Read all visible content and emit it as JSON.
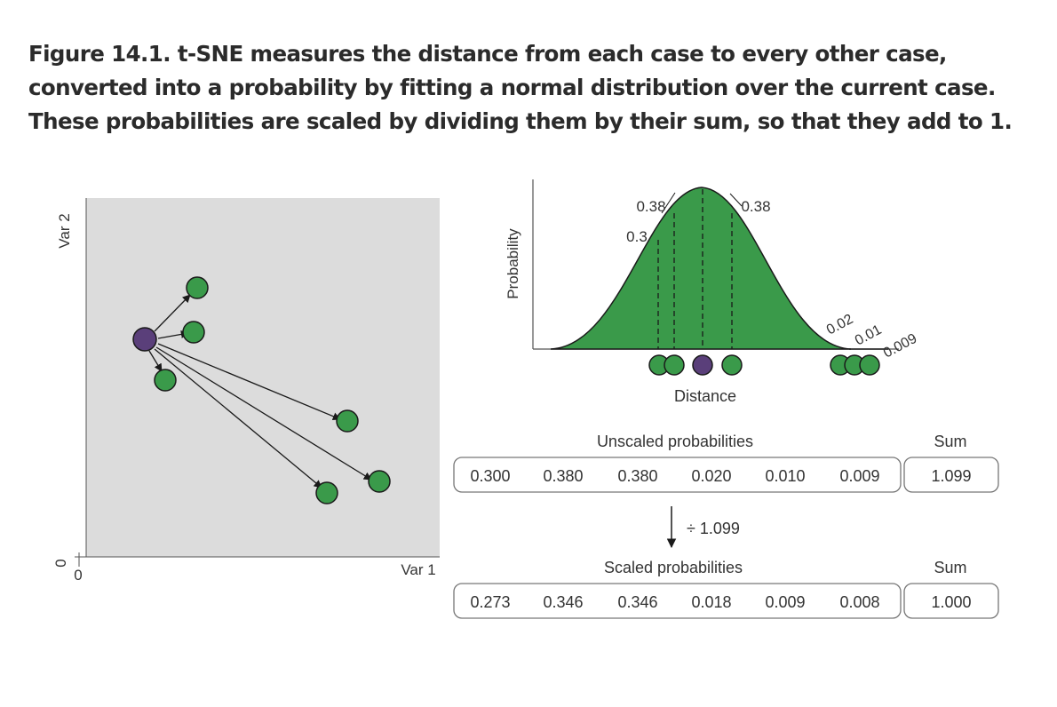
{
  "caption": "Figure 14.1. t-SNE measures the distance from each case to every other case, converted into a probability by fitting a normal distribution over the current case. These probabilities are scaled by dividing them by their sum, so that they add to 1.",
  "scatter": {
    "y_axis_label": "Var 2",
    "x_axis_label": "Var 1",
    "y_zero": "0",
    "x_zero": "0"
  },
  "curve": {
    "y_axis_label": "Probability",
    "x_axis_label": "Distance",
    "point_labels": [
      "0.38",
      "0.38",
      "0.3",
      "0.02",
      "0.01",
      "0.009"
    ]
  },
  "unscaled": {
    "title": "Unscaled probabilities",
    "values": [
      "0.300",
      "0.380",
      "0.380",
      "0.020",
      "0.010",
      "0.009"
    ],
    "sum_label": "Sum",
    "sum_value": "1.099"
  },
  "divide_label": "÷ 1.099",
  "scaled": {
    "title": "Scaled probabilities",
    "values": [
      "0.273",
      "0.346",
      "0.346",
      "0.018",
      "0.009",
      "0.008"
    ],
    "sum_label": "Sum",
    "sum_value": "1.000"
  },
  "colors": {
    "green": "#3a9a4a",
    "purple": "#5a3f7a",
    "panel_gray": "#dcdcdc",
    "outline": "#1a1a1a"
  }
}
